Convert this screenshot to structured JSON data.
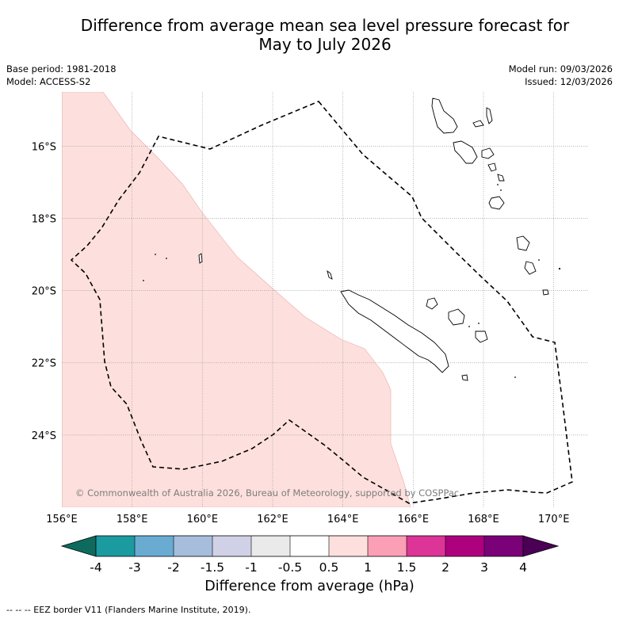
{
  "title_line1": "Difference from average mean sea level pressure forecast for",
  "title_line2": "May to July 2026",
  "base_period": "Base period: 1981-2018",
  "model": "Model: ACCESS-S2",
  "model_run": "Model run: 09/03/2026",
  "issued": "Issued: 12/03/2026",
  "copyright": "© Commonwealth of Australia 2026, Bureau of Meteorology, supported by COSPPac",
  "map": {
    "lon_range": [
      156,
      171
    ],
    "lat_range": [
      -26,
      -14.5
    ],
    "lon_ticks": [
      {
        "value": 156,
        "label": "156°E"
      },
      {
        "value": 158,
        "label": "158°E"
      },
      {
        "value": 160,
        "label": "160°E"
      },
      {
        "value": 162,
        "label": "162°E"
      },
      {
        "value": 164,
        "label": "164°E"
      },
      {
        "value": 166,
        "label": "166°E"
      },
      {
        "value": 168,
        "label": "168°E"
      },
      {
        "value": 170,
        "label": "170°E"
      }
    ],
    "lat_ticks": [
      {
        "value": -16,
        "label": "16°S"
      },
      {
        "value": -18,
        "label": "18°S"
      },
      {
        "value": -20,
        "label": "20°S"
      },
      {
        "value": -22,
        "label": "22°S"
      },
      {
        "value": -24,
        "label": "24°S"
      }
    ],
    "anomaly_region_category": "0.5 to 1",
    "anomaly_color": "#fde0dd"
  },
  "colorbar": {
    "label": "Difference from average (hPa)",
    "under_color": "#0d6b5e",
    "over_color": "#4b0055",
    "boundaries": [
      "-4",
      "-3",
      "-2",
      "-1.5",
      "-1",
      "-0.5",
      "0.5",
      "1",
      "1.5",
      "2",
      "3",
      "4"
    ],
    "colors": [
      "#1b9aa0",
      "#6aabd2",
      "#a6bddb",
      "#d0d1e6",
      "#ebeaeb",
      "#ffffff",
      "#fde0dd",
      "#fa9fb5",
      "#dd3497",
      "#ae017e",
      "#7a0177"
    ]
  },
  "eez_note": "--  --  -- EEZ border V11 (Flanders Marine Institute, 2019)."
}
